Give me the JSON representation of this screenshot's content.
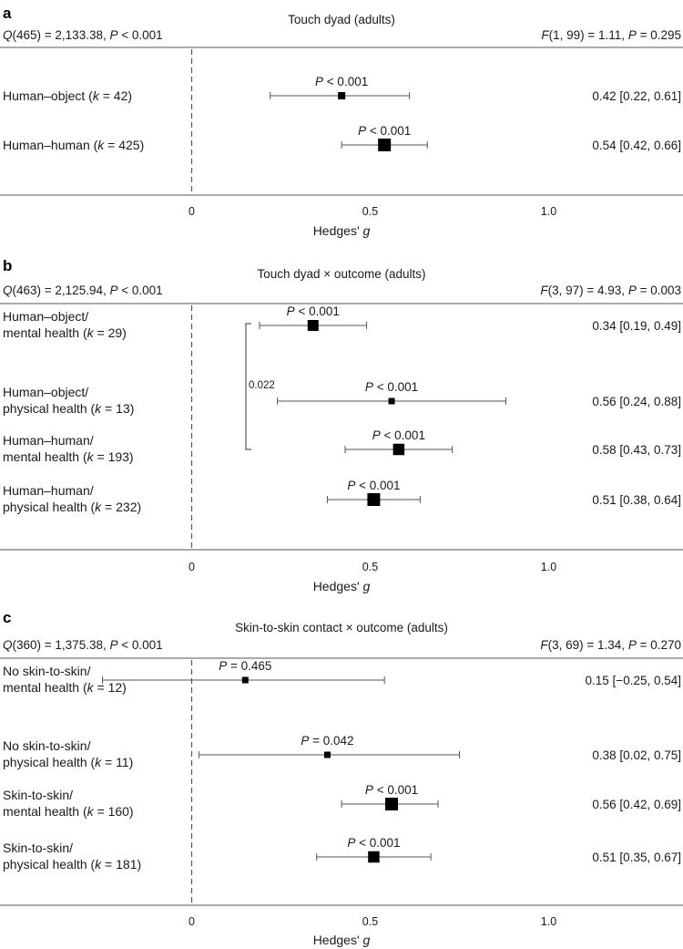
{
  "colors": {
    "mental": "#4a72c4",
    "physical": "#d2391c",
    "black": "#1a1a1a"
  },
  "chart_data": [
    {
      "type": "forest",
      "panel_letter": "a",
      "title": "Touch dyad (adults)",
      "q_stat": {
        "prefix": "Q",
        "text": "(465) = 2,133.38, ",
        "p": "P",
        "ptext": " < 0.001"
      },
      "f_stat": {
        "prefix": "F",
        "text": "(1, 99) = 1.11, ",
        "p": "P",
        "ptext": " = 0.295"
      },
      "xlabel": "Hedges' ",
      "xlabel_italic": "g",
      "xticks": [
        0,
        0.5,
        1.0
      ],
      "xtick_labels": [
        "0",
        "0.5",
        "1.0"
      ],
      "xlim": [
        -0.53,
        1.38
      ],
      "rows": [
        {
          "label_lines": [
            "Human–object (",
            "k",
            " = 42)"
          ],
          "color": "black",
          "est": 0.42,
          "lo": 0.22,
          "hi": 0.61,
          "p_sym": "P",
          "p_text": " < 0.001",
          "result": "0.42 [0.22, 0.61]",
          "weight": 0.4
        },
        {
          "label_lines": [
            "Human–human (",
            "k",
            " = 425)"
          ],
          "color": "black",
          "est": 0.54,
          "lo": 0.42,
          "hi": 0.66,
          "p_sym": "P",
          "p_text": " < 0.001",
          "result": "0.54 [0.42, 0.66]",
          "weight": 1.0
        }
      ],
      "bracket": null
    },
    {
      "type": "forest",
      "panel_letter": "b",
      "title": "Touch dyad × outcome (adults)",
      "q_stat": {
        "prefix": "Q",
        "text": "(463) = 2,125.94, ",
        "p": "P",
        "ptext": " < 0.001"
      },
      "f_stat": {
        "prefix": "F",
        "text": "(3, 97) = 4.93, ",
        "p": "P",
        "ptext": " = 0.003"
      },
      "xlabel": "Hedges' ",
      "xlabel_italic": "g",
      "xticks": [
        0,
        0.5,
        1.0
      ],
      "xtick_labels": [
        "0",
        "0.5",
        "1.0"
      ],
      "xlim": [
        -0.53,
        1.38
      ],
      "rows": [
        {
          "line1": "Human–object/",
          "line2a": "mental health (",
          "k": "k",
          "line2b": " = 29)",
          "color": "mental",
          "est": 0.34,
          "lo": 0.19,
          "hi": 0.49,
          "p_sym": "P",
          "p_text": " < 0.001",
          "result": "0.34 [0.19, 0.49]",
          "weight": 0.8
        },
        {
          "line1": "Human–object/",
          "line2a": "physical health (",
          "k": "k",
          "line2b": " = 13)",
          "color": "physical",
          "est": 0.56,
          "lo": 0.24,
          "hi": 0.88,
          "p_sym": "P",
          "p_text": " < 0.001",
          "result": "0.56 [0.24, 0.88]",
          "weight": 0.3
        },
        {
          "line1": "Human–human/",
          "line2a": "mental health (",
          "k": "k",
          "line2b": " = 193)",
          "color": "mental",
          "est": 0.58,
          "lo": 0.43,
          "hi": 0.73,
          "p_sym": "P",
          "p_text": " < 0.001",
          "result": "0.58 [0.43, 0.73]",
          "weight": 0.85
        },
        {
          "line1": "Human–human/",
          "line2a": "physical health (",
          "k": "k",
          "line2b": " = 232)",
          "color": "physical",
          "est": 0.51,
          "lo": 0.38,
          "hi": 0.64,
          "p_sym": "P",
          "p_text": " < 0.001",
          "result": "0.51 [0.38, 0.64]",
          "weight": 1.0
        }
      ],
      "bracket": {
        "from_row": 0,
        "to_row": 2,
        "label": "0.022"
      }
    },
    {
      "type": "forest",
      "panel_letter": "c",
      "title": "Skin-to-skin contact × outcome (adults)",
      "q_stat": {
        "prefix": "Q",
        "text": "(360) = 1,375.38, ",
        "p": "P",
        "ptext": " < 0.001"
      },
      "f_stat": {
        "prefix": "F",
        "text": "(3, 69) = 1.34, ",
        "p": "P",
        "ptext": " = 0.270"
      },
      "xlabel": "Hedges' ",
      "xlabel_italic": "g",
      "xticks": [
        0,
        0.5,
        1.0
      ],
      "xtick_labels": [
        "0",
        "0.5",
        "1.0"
      ],
      "xlim": [
        -0.53,
        1.38
      ],
      "rows": [
        {
          "line1": "No skin-to-skin/",
          "line2a": "mental health (",
          "k": "k",
          "line2b": " = 12)",
          "color": "mental",
          "est": 0.15,
          "lo": -0.25,
          "hi": 0.54,
          "p_sym": "P",
          "p_text": " = 0.465",
          "result": "0.15 [−0.25, 0.54]",
          "weight": 0.3
        },
        {
          "line1": "No skin-to-skin/",
          "line2a": "physical health (",
          "k": "k",
          "line2b": " = 11)",
          "color": "physical",
          "est": 0.38,
          "lo": 0.02,
          "hi": 0.75,
          "p_sym": "P",
          "p_text": " = 0.042",
          "result": "0.38 [0.02, 0.75]",
          "weight": 0.3
        },
        {
          "line1": "Skin-to-skin/",
          "line2a": "mental health (",
          "k": "k",
          "line2b": " = 160)",
          "color": "mental",
          "est": 0.56,
          "lo": 0.42,
          "hi": 0.69,
          "p_sym": "P",
          "p_text": " < 0.001",
          "result": "0.56 [0.42, 0.69]",
          "weight": 1.0
        },
        {
          "line1": "Skin-to-skin/",
          "line2a": "physical health (",
          "k": "k",
          "line2b": " = 181)",
          "color": "physical",
          "est": 0.51,
          "lo": 0.35,
          "hi": 0.67,
          "p_sym": "P",
          "p_text": " < 0.001",
          "result": "0.51 [0.35, 0.67]",
          "weight": 0.85
        }
      ],
      "bracket": null
    }
  ]
}
